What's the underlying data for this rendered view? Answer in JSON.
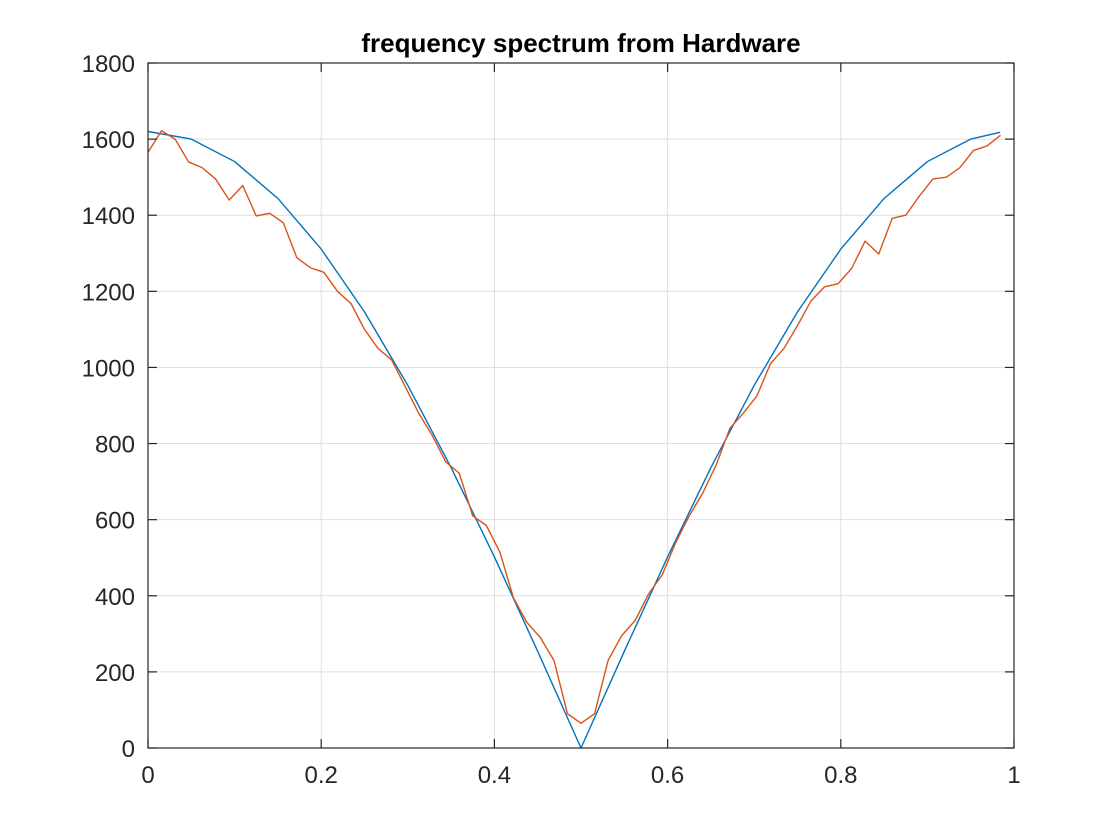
{
  "chart_data": {
    "type": "line",
    "title": "frequency spectrum from Hardware",
    "xlabel": "",
    "ylabel": "",
    "xlim": [
      0,
      1
    ],
    "ylim": [
      0,
      1800
    ],
    "grid": true,
    "x_ticks": [
      "0",
      "0.2",
      "0.4",
      "0.6",
      "0.8",
      "1"
    ],
    "y_ticks": [
      "0",
      "200",
      "400",
      "600",
      "800",
      "1000",
      "1200",
      "1400",
      "1600",
      "1800"
    ],
    "series": [
      {
        "color": "#0072BD",
        "x": [
          0,
          0.05,
          0.1,
          0.15,
          0.2,
          0.25,
          0.3,
          0.35,
          0.4,
          0.45,
          0.5,
          0.55,
          0.6,
          0.65,
          0.7,
          0.75,
          0.8,
          0.85,
          0.9,
          0.95,
          0.984
        ],
        "values": [
          1620,
          1600,
          1541,
          1444,
          1311,
          1146,
          953,
          737,
          502,
          254,
          0,
          254,
          502,
          737,
          953,
          1146,
          1311,
          1444,
          1541,
          1600,
          1618
        ]
      },
      {
        "color": "#D95319",
        "x": [
          0,
          0.0156,
          0.0313,
          0.0469,
          0.0625,
          0.0781,
          0.0938,
          0.1094,
          0.125,
          0.1406,
          0.1563,
          0.1719,
          0.1875,
          0.2031,
          0.2188,
          0.2344,
          0.25,
          0.2656,
          0.2813,
          0.2969,
          0.3125,
          0.3281,
          0.3438,
          0.3594,
          0.375,
          0.3906,
          0.4063,
          0.4219,
          0.4375,
          0.4531,
          0.4688,
          0.4844,
          0.5,
          0.5156,
          0.5313,
          0.5469,
          0.5625,
          0.5781,
          0.5938,
          0.6094,
          0.625,
          0.6406,
          0.6563,
          0.6719,
          0.6875,
          0.7031,
          0.7188,
          0.7344,
          0.75,
          0.7656,
          0.7813,
          0.7969,
          0.8125,
          0.8281,
          0.8438,
          0.8594,
          0.875,
          0.8906,
          0.9063,
          0.9219,
          0.9375,
          0.9531,
          0.9688,
          0.9844
        ],
        "values": [
          1565,
          1622,
          1600,
          1540,
          1525,
          1495,
          1440,
          1478,
          1398,
          1405,
          1380,
          1288,
          1262,
          1250,
          1200,
          1168,
          1100,
          1050,
          1020,
          950,
          880,
          822,
          752,
          722,
          610,
          585,
          515,
          395,
          330,
          290,
          230,
          90,
          65,
          90,
          230,
          295,
          335,
          405,
          455,
          540,
          610,
          670,
          745,
          840,
          880,
          925,
          1010,
          1050,
          1110,
          1175,
          1212,
          1220,
          1260,
          1332,
          1298,
          1392,
          1400,
          1450,
          1495,
          1500,
          1525,
          1570,
          1582,
          1610
        ]
      }
    ]
  }
}
